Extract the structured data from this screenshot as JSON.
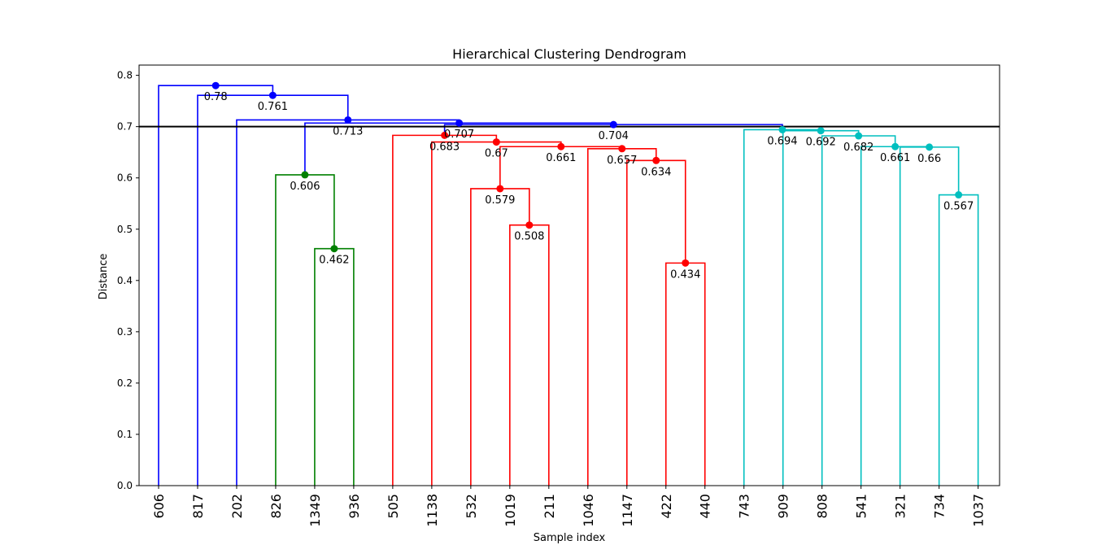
{
  "chart_data": {
    "type": "dendrogram",
    "title": "Hierarchical Clustering Dendrogram",
    "xlabel": "Sample index",
    "ylabel": "Distance",
    "ylim": [
      0,
      0.82
    ],
    "yticks": [
      "0.0",
      "0.1",
      "0.2",
      "0.3",
      "0.4",
      "0.5",
      "0.6",
      "0.7",
      "0.8"
    ],
    "ytick_values": [
      0,
      0.1,
      0.2,
      0.3,
      0.4,
      0.5,
      0.6,
      0.7,
      0.8
    ],
    "threshold": 0.7,
    "threshold_color": "#000000",
    "leaves": [
      "606",
      "817",
      "202",
      "826",
      "1349",
      "936",
      "505",
      "1138",
      "532",
      "1019",
      "211",
      "1046",
      "1147",
      "422",
      "440",
      "743",
      "909",
      "808",
      "541",
      "321",
      "734",
      "1037"
    ],
    "cluster_colors": {
      "above": "#0000ff",
      "green": "#008000",
      "red": "#ff0000",
      "cyan": "#00bfbf"
    },
    "merges": [
      {
        "id": "m1",
        "left": "L4",
        "right": "L5",
        "height": 0.462,
        "label": "0.462",
        "color": "green"
      },
      {
        "id": "m2",
        "left": "L3",
        "right": "m1",
        "height": 0.606,
        "label": "0.606",
        "color": "green"
      },
      {
        "id": "m3",
        "left": "L9",
        "right": "L10",
        "height": 0.508,
        "label": "0.508",
        "color": "red"
      },
      {
        "id": "m4",
        "left": "L8",
        "right": "m3",
        "height": 0.579,
        "label": "0.579",
        "color": "red"
      },
      {
        "id": "m5",
        "left": "L13",
        "right": "L14",
        "height": 0.434,
        "label": "0.434",
        "color": "red"
      },
      {
        "id": "m6",
        "left": "L12",
        "right": "m5",
        "height": 0.634,
        "label": "0.634",
        "color": "red"
      },
      {
        "id": "m7",
        "left": "L11",
        "right": "m6",
        "height": 0.657,
        "label": "0.657",
        "color": "red"
      },
      {
        "id": "m8",
        "left": "m4",
        "right": "m7",
        "height": 0.661,
        "label": "0.661",
        "color": "red"
      },
      {
        "id": "m9",
        "left": "L7",
        "right": "m8",
        "height": 0.67,
        "label": "0.67",
        "color": "red"
      },
      {
        "id": "m10",
        "left": "L6",
        "right": "m9",
        "height": 0.683,
        "label": "0.683",
        "color": "red"
      },
      {
        "id": "m11",
        "left": "L20",
        "right": "L21",
        "height": 0.567,
        "label": "0.567",
        "color": "cyan"
      },
      {
        "id": "m12",
        "left": "L19",
        "right": "m11",
        "height": 0.66,
        "label": "0.66",
        "color": "cyan"
      },
      {
        "id": "m13",
        "left": "L18",
        "right": "m12",
        "height": 0.661,
        "label": "0.661",
        "color": "cyan"
      },
      {
        "id": "m14",
        "left": "L17",
        "right": "m13",
        "height": 0.682,
        "label": "0.682",
        "color": "cyan"
      },
      {
        "id": "m15",
        "left": "L16",
        "right": "m14",
        "height": 0.692,
        "label": "0.692",
        "color": "cyan"
      },
      {
        "id": "m16",
        "left": "L15",
        "right": "m15",
        "height": 0.694,
        "label": "0.694",
        "color": "cyan"
      },
      {
        "id": "m17",
        "left": "m10",
        "right": "m16",
        "height": 0.704,
        "label": "0.704",
        "color": "above"
      },
      {
        "id": "m18",
        "left": "m2",
        "right": "m17",
        "height": 0.707,
        "label": "0.707",
        "color": "above"
      },
      {
        "id": "m19",
        "left": "L2",
        "right": "m18",
        "height": 0.713,
        "label": "0.713",
        "color": "above"
      },
      {
        "id": "m20",
        "left": "L1",
        "right": "m19",
        "height": 0.761,
        "label": "0.761",
        "color": "above"
      },
      {
        "id": "m21",
        "left": "L0",
        "right": "m20",
        "height": 0.78,
        "label": "0.78",
        "color": "above"
      }
    ],
    "leaf_colors": [
      "above",
      "above",
      "above",
      "green",
      "green",
      "green",
      "red",
      "red",
      "red",
      "red",
      "red",
      "red",
      "red",
      "red",
      "red",
      "cyan",
      "cyan",
      "cyan",
      "cyan",
      "cyan",
      "cyan",
      "cyan"
    ],
    "grid": false,
    "legend": "none"
  }
}
